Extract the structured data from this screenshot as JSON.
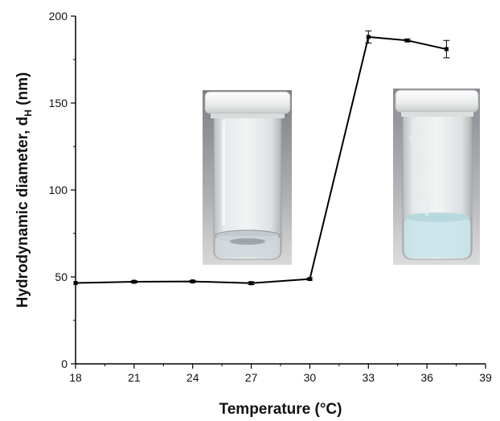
{
  "chart_data": {
    "type": "line",
    "xlabel": "Temperature (°C)",
    "ylabel_main": "Hydrodynamic diameter, d",
    "ylabel_sub": "H",
    "ylabel_unit": " (nm)",
    "xlim": [
      18,
      39
    ],
    "ylim": [
      0,
      200
    ],
    "xticks": [
      18,
      21,
      24,
      27,
      30,
      33,
      36,
      39
    ],
    "yticks": [
      0,
      50,
      100,
      150,
      200
    ],
    "grid": false,
    "series": [
      {
        "color": "#000000",
        "points": [
          {
            "x": 18,
            "y": 46.5,
            "err": 0
          },
          {
            "x": 21,
            "y": 47.2,
            "err": 0.6
          },
          {
            "x": 24,
            "y": 47.4,
            "err": 0.6
          },
          {
            "x": 27,
            "y": 46.4,
            "err": 0.8
          },
          {
            "x": 30,
            "y": 48.8,
            "err": 0.6
          },
          {
            "x": 33,
            "y": 188.0,
            "err": 3.5
          },
          {
            "x": 35,
            "y": 186.0,
            "err": 0.8
          },
          {
            "x": 37,
            "y": 181.0,
            "err": 5.0
          }
        ]
      }
    ]
  },
  "insets": [
    {
      "name": "vial-clear",
      "state": "clear",
      "cap_color": "#eef0ef",
      "liquid_color": "#cfd6da"
    },
    {
      "name": "vial-turbid",
      "state": "turbid",
      "cap_color": "#f2f3f3",
      "liquid_color": "#c9e4ea"
    }
  ]
}
